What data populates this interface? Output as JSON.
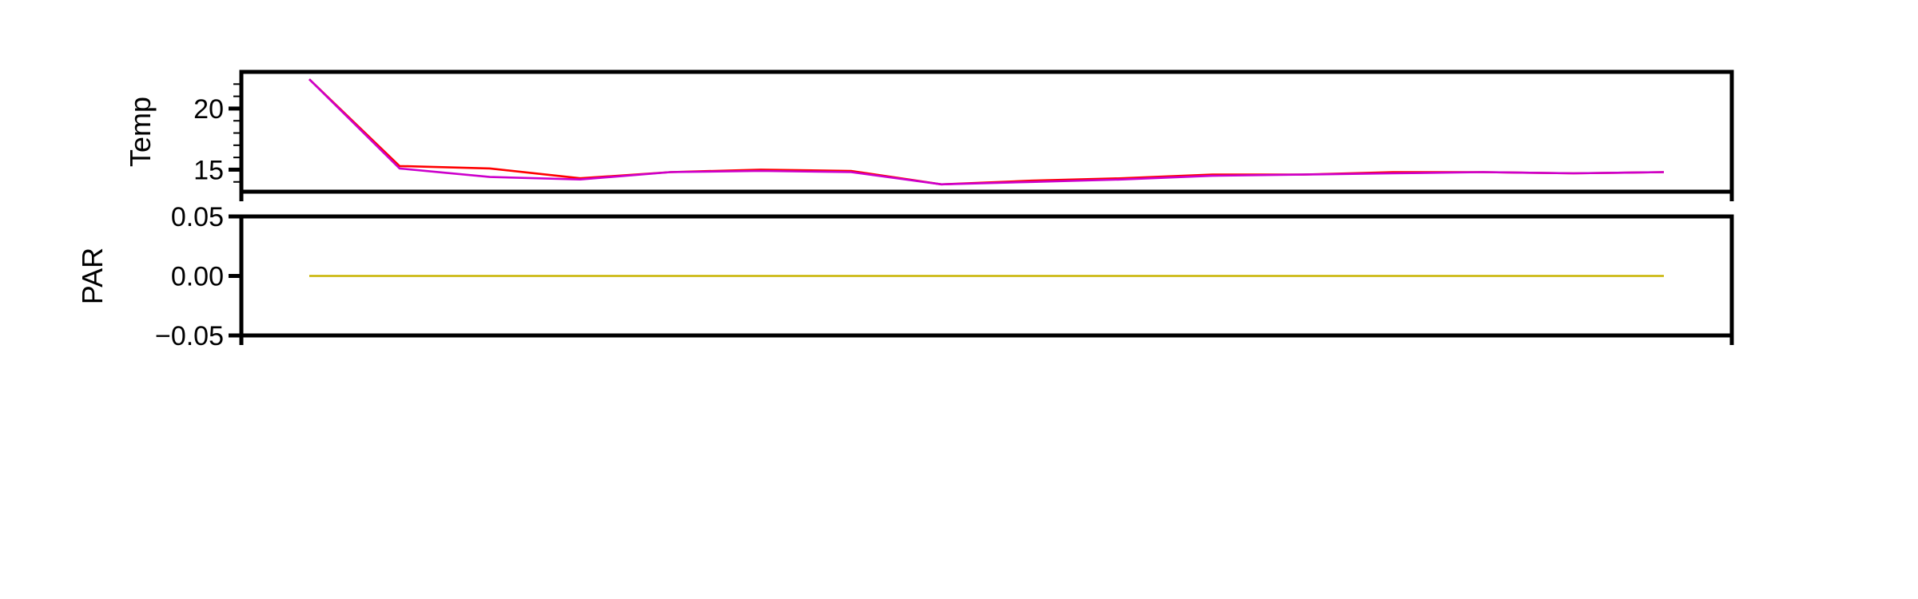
{
  "chart_data": [
    {
      "type": "line",
      "ylabel": "Temp",
      "ylim": [
        13.2,
        23.0
      ],
      "x": [
        1,
        2,
        3,
        4,
        5,
        6,
        7,
        8,
        9,
        10,
        11,
        12,
        13,
        14,
        15,
        16
      ],
      "yticks": [
        {
          "value": 15,
          "label": "15"
        },
        {
          "value": 20,
          "label": "20"
        }
      ],
      "minor_yticks": [
        14,
        16,
        17,
        18,
        19,
        21,
        22
      ],
      "series": [
        {
          "color": "#ff0000",
          "values": [
            22.4,
            15.3,
            15.1,
            14.3,
            14.8,
            15.0,
            14.9,
            13.8,
            14.1,
            14.3,
            14.6,
            14.6,
            14.8,
            14.8,
            14.7,
            14.8
          ]
        },
        {
          "color": "#cc00cc",
          "values": [
            22.4,
            15.1,
            14.4,
            14.2,
            14.8,
            14.9,
            14.8,
            13.8,
            14.0,
            14.2,
            14.5,
            14.6,
            14.7,
            14.8,
            14.7,
            14.8
          ]
        }
      ],
      "grid": false
    },
    {
      "type": "line",
      "ylabel": "PAR",
      "ylim": [
        -0.05,
        0.05
      ],
      "x": [
        1,
        2,
        3,
        4,
        5,
        6,
        7,
        8,
        9,
        10,
        11,
        12,
        13,
        14,
        15,
        16
      ],
      "yticks": [
        {
          "value": 0.05,
          "label": "0.05"
        },
        {
          "value": 0.0,
          "label": "0.00"
        },
        {
          "value": -0.05,
          "label": "−0.05"
        }
      ],
      "series": [
        {
          "color": "#c8b400",
          "values": [
            0,
            0,
            0,
            0,
            0,
            0,
            0,
            0,
            0,
            0,
            0,
            0,
            0,
            0,
            0,
            0
          ]
        }
      ],
      "grid": false
    }
  ]
}
